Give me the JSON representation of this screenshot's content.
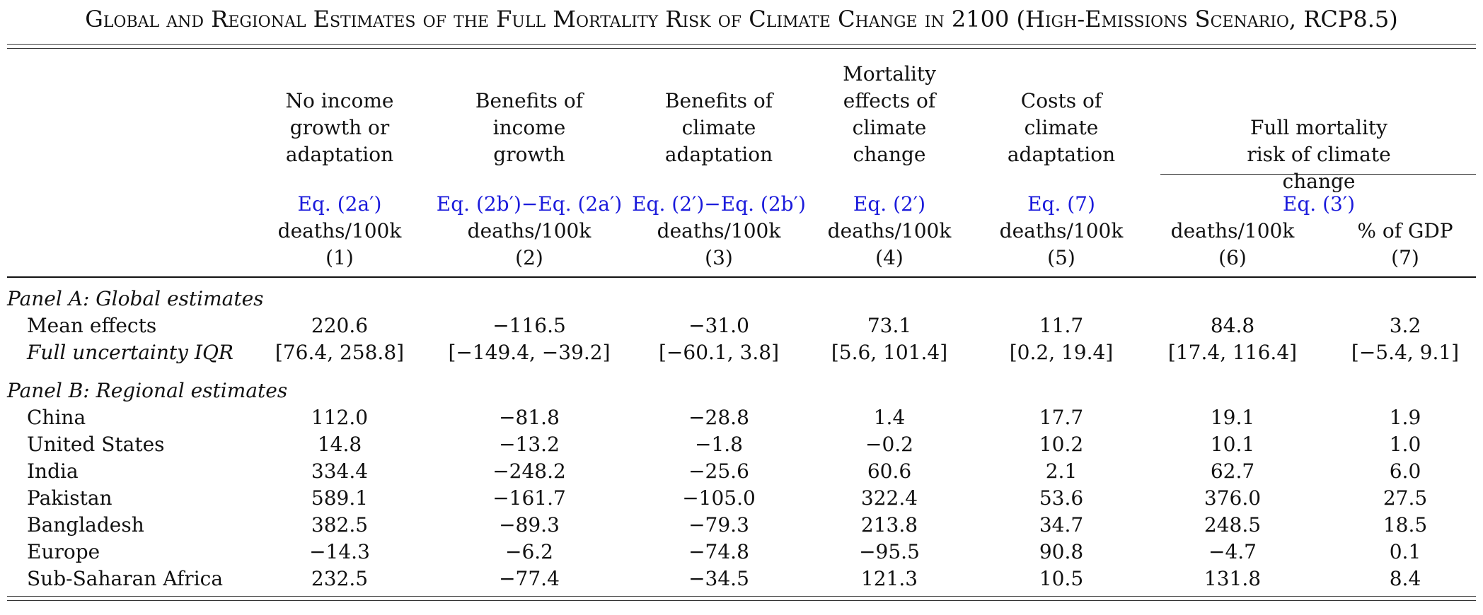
{
  "title": "Global and Regional Estimates of the Full Mortality Risk of Climate Change in 2100 (High-Emissions Scenario, RCP8.5)",
  "columns": [
    {
      "header": "No income\ngrowth or\nadaptation",
      "eq": "Eq. (2a′)",
      "unit": "deaths/100k",
      "num": "(1)"
    },
    {
      "header": "Benefits of\nincome\ngrowth",
      "eq": "Eq. (2b′)−Eq. (2a′)",
      "unit": "deaths/100k",
      "num": "(2)"
    },
    {
      "header": "Benefits of\nclimate\nadaptation",
      "eq": "Eq. (2′)−Eq. (2b′)",
      "unit": "deaths/100k",
      "num": "(3)"
    },
    {
      "header": "Mortality\neffects of\nclimate\nchange",
      "eq": "Eq. (2′)",
      "unit": "deaths/100k",
      "num": "(4)"
    },
    {
      "header": "Costs of\nclimate\nadaptation",
      "eq": "Eq. (7)",
      "unit": "deaths/100k",
      "num": "(5)"
    },
    {
      "header": "",
      "eq": "",
      "unit": "deaths/100k",
      "num": "(6)"
    },
    {
      "header": "",
      "eq": "",
      "unit": "% of GDP",
      "num": "(7)"
    }
  ],
  "group_header": {
    "label": "Full mortality risk of climate\nchange",
    "eq": "Eq. (3′)"
  },
  "panel_a": {
    "label": "Panel A: Global estimates",
    "rows": [
      {
        "label": "Mean effects",
        "values": [
          "220.6",
          "−116.5",
          "−31.0",
          "73.1",
          "11.7",
          "84.8",
          "3.2"
        ]
      },
      {
        "label": "Full uncertainty IQR",
        "values": [
          "[76.4, 258.8]",
          "[−149.4, −39.2]",
          "[−60.1, 3.8]",
          "[5.6, 101.4]",
          "[0.2, 19.4]",
          "[17.4, 116.4]",
          "[−5.4, 9.1]"
        ]
      }
    ]
  },
  "panel_b": {
    "label": "Panel B: Regional estimates",
    "rows": [
      {
        "label": "China",
        "values": [
          "112.0",
          "−81.8",
          "−28.8",
          "1.4",
          "17.7",
          "19.1",
          "1.9"
        ]
      },
      {
        "label": "United States",
        "values": [
          "14.8",
          "−13.2",
          "−1.8",
          "−0.2",
          "10.2",
          "10.1",
          "1.0"
        ]
      },
      {
        "label": "India",
        "values": [
          "334.4",
          "−248.2",
          "−25.6",
          "60.6",
          "2.1",
          "62.7",
          "6.0"
        ]
      },
      {
        "label": "Pakistan",
        "values": [
          "589.1",
          "−161.7",
          "−105.0",
          "322.4",
          "53.6",
          "376.0",
          "27.5"
        ]
      },
      {
        "label": "Bangladesh",
        "values": [
          "382.5",
          "−89.3",
          "−79.3",
          "213.8",
          "34.7",
          "248.5",
          "18.5"
        ]
      },
      {
        "label": "Europe",
        "values": [
          "−14.3",
          "−6.2",
          "−74.8",
          "−95.5",
          "90.8",
          "−4.7",
          "0.1"
        ]
      },
      {
        "label": "Sub-Saharan Africa",
        "values": [
          "232.5",
          "−77.4",
          "−34.5",
          "121.3",
          "10.5",
          "131.8",
          "8.4"
        ]
      }
    ]
  }
}
